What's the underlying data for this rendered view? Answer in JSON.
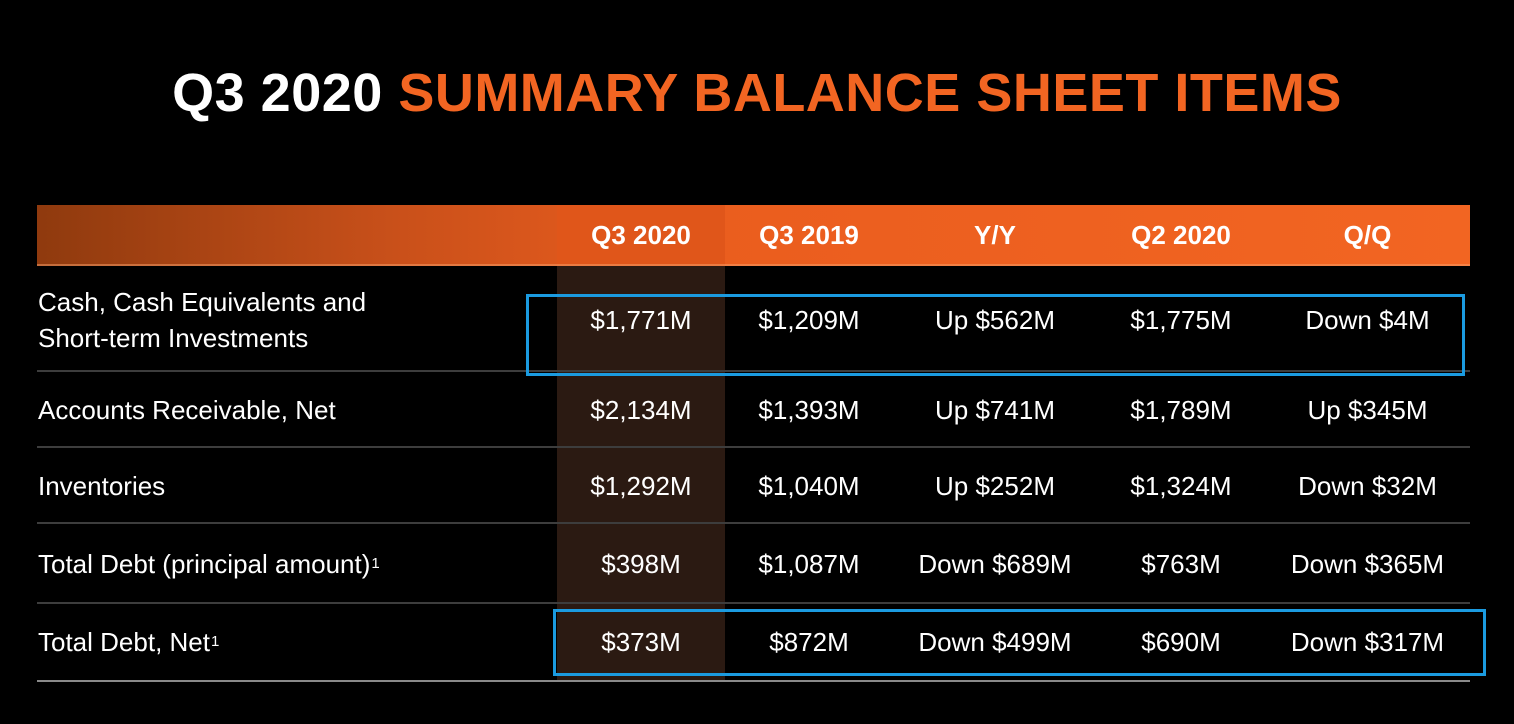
{
  "title": {
    "prefix": "Q3 2020",
    "main": "SUMMARY BALANCE SHEET ITEMS"
  },
  "colors": {
    "accent": "#f26522",
    "highlight_box": "#1b9be0",
    "background": "#000000"
  },
  "table": {
    "headers": [
      "Q3 2020",
      "Q3 2019",
      "Y/Y",
      "Q2 2020",
      "Q/Q"
    ],
    "rows": [
      {
        "label": "Cash, Cash Equivalents and",
        "label2": "Short-term Investments",
        "footnote": "",
        "values": [
          "$1,771M",
          "$1,209M",
          "Up $562M",
          "$1,775M",
          "Down $4M"
        ]
      },
      {
        "label": "Accounts Receivable, Net",
        "label2": "",
        "footnote": "",
        "values": [
          "$2,134M",
          "$1,393M",
          "Up $741M",
          "$1,789M",
          "Up $345M"
        ]
      },
      {
        "label": "Inventories",
        "label2": "",
        "footnote": "",
        "values": [
          "$1,292M",
          "$1,040M",
          "Up $252M",
          "$1,324M",
          "Down $32M"
        ]
      },
      {
        "label": "Total Debt (principal amount)",
        "label2": "",
        "footnote": "1",
        "values": [
          "$398M",
          "$1,087M",
          "Down $689M",
          "$763M",
          "Down $365M"
        ]
      },
      {
        "label": "Total Debt, Net",
        "label2": "",
        "footnote": "1",
        "values": [
          "$373M",
          "$872M",
          "Down $499M",
          "$690M",
          "Down $317M"
        ]
      }
    ]
  }
}
